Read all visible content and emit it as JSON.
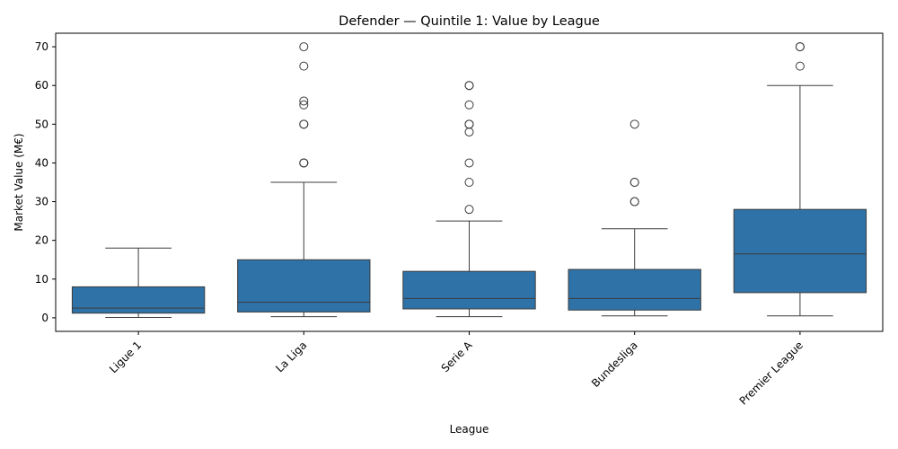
{
  "chart_data": {
    "type": "boxplot",
    "title": "Defender — Quintile 1: Value by League",
    "xlabel": "League",
    "ylabel": "Market Value (M€)",
    "categories": [
      "Ligue 1",
      "La Liga",
      "Serie A",
      "Bundesliga",
      "Premier League"
    ],
    "ylim": [
      -3.5,
      73.5
    ],
    "yticks": [
      0,
      10,
      20,
      30,
      40,
      50,
      60,
      70
    ],
    "grid": false,
    "box_color": "#2e72a8",
    "line_color": "#3d3d3d",
    "boxes": [
      {
        "category": "Ligue 1",
        "whisker_low": 0.1,
        "q1": 1.2,
        "median": 2.5,
        "q3": 8.0,
        "whisker_high": 18.0,
        "outliers": []
      },
      {
        "category": "La Liga",
        "whisker_low": 0.3,
        "q1": 1.5,
        "median": 4.0,
        "q3": 15.0,
        "whisker_high": 35.0,
        "outliers": [
          40,
          40,
          40,
          50,
          50,
          55,
          56,
          65,
          70
        ]
      },
      {
        "category": "Serie A",
        "whisker_low": 0.3,
        "q1": 2.3,
        "median": 5.0,
        "q3": 12.0,
        "whisker_high": 25.0,
        "outliers": [
          28,
          35,
          40,
          48,
          50,
          50,
          55,
          60,
          60
        ]
      },
      {
        "category": "Bundesliga",
        "whisker_low": 0.5,
        "q1": 2.0,
        "median": 5.0,
        "q3": 12.5,
        "whisker_high": 23.0,
        "outliers": [
          30,
          30,
          35,
          35,
          50
        ]
      },
      {
        "category": "Premier League",
        "whisker_low": 0.5,
        "q1": 6.5,
        "median": 16.5,
        "q3": 28.0,
        "whisker_high": 60.0,
        "outliers": [
          65,
          70,
          70
        ]
      }
    ]
  }
}
